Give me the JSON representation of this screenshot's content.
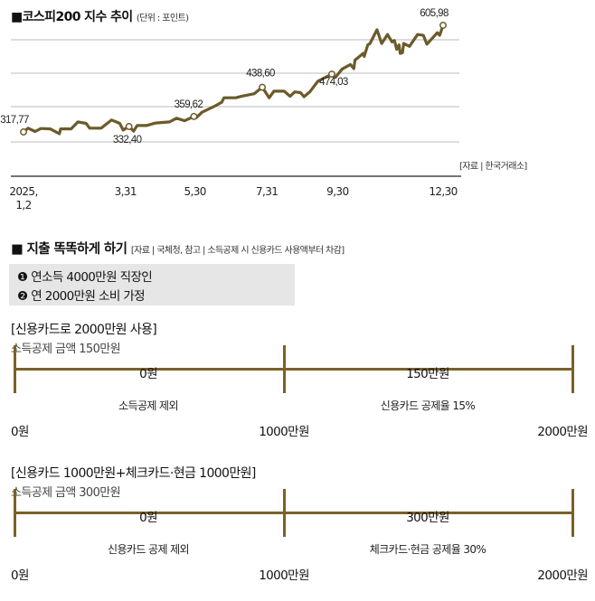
{
  "chart_data": {
    "type": "line",
    "title": "■코스피200 지수 추이",
    "unit_note": "(단위 : 포인트)",
    "source": "[자료 | 한국거래소]",
    "x_unit": "day of year 2025",
    "x_tick_labels": [
      {
        "day": 2,
        "label": "2025,\n1,2"
      },
      {
        "day": 90,
        "label": "3,31"
      },
      {
        "day": 150,
        "label": "5,30"
      },
      {
        "day": 212,
        "label": "7,31"
      },
      {
        "day": 273,
        "label": "9,30"
      },
      {
        "day": 364,
        "label": "12,30"
      }
    ],
    "ylim": [
      280,
      620
    ],
    "grid": true,
    "line_color": "#6b5a2a",
    "series": [
      {
        "name": "코스피200",
        "x": [
          2,
          6,
          12,
          17,
          25,
          33,
          34,
          43,
          49,
          56,
          59,
          69,
          78,
          85,
          88,
          93,
          97,
          100,
          108,
          116,
          128,
          134,
          141,
          149,
          151,
          156,
          166,
          173,
          175,
          185,
          190,
          201,
          208,
          214,
          218,
          227,
          232,
          236,
          241,
          244,
          249,
          256,
          268,
          271,
          277,
          284,
          287,
          288,
          295,
          296,
          299,
          301,
          307,
          311,
          316,
          320,
          322,
          324,
          326,
          327,
          329,
          330,
          335,
          342,
          347,
          350,
          359,
          361,
          364
        ],
        "values": [
          317.77,
          328,
          319,
          327,
          326,
          313,
          326,
          326,
          345,
          341,
          328,
          328,
          350,
          341,
          323,
          332.4,
          320,
          335,
          335,
          342,
          345,
          355,
          348,
          359.62,
          356,
          371,
          386,
          398,
          410,
          410,
          414,
          421,
          438.6,
          410,
          428,
          428,
          414,
          426,
          424,
          413,
          426,
          455,
          474.03,
          465,
          488,
          500,
          489,
          512,
          530,
          522,
          553,
          557,
          594,
          557,
          581,
          561,
          565,
          541,
          553,
          530,
          532,
          557,
          549,
          581,
          579,
          555,
          586,
          579,
          605.98
        ]
      }
    ],
    "annotations": [
      {
        "day": 2,
        "value": 317.77,
        "label": "317,77"
      },
      {
        "day": 93,
        "value": 332.4,
        "label": "332,40"
      },
      {
        "day": 149,
        "value": 359.62,
        "label": "359,62"
      },
      {
        "day": 208,
        "value": 438.6,
        "label": "438,60"
      },
      {
        "day": 268,
        "value": 474.03,
        "label": "474,03"
      },
      {
        "day": 364,
        "value": 605.98,
        "label": "605,98"
      }
    ]
  },
  "spending": {
    "title": "■ 지출 똑똑하게 하기",
    "note": "[자료 | 국체청, 참고 | 소득공제 시 신용카드 사용액부터 차감]",
    "assumptions": [
      "❶ 연소득 4000만원 직장인",
      "❷ 연 2000만원 소비 가정"
    ],
    "bar_color": "#7a6128",
    "scenarios": [
      {
        "heading": "[신용카드로 2000만원 사용]",
        "sub": "소득공제 금액 150만원",
        "segments": [
          {
            "top": "0원",
            "bottom": "소득공제 제외"
          },
          {
            "top": "150만원",
            "bottom": "신용카드 공제율 15%"
          }
        ],
        "scale": [
          "0원",
          "1000만원",
          "2000만원"
        ]
      },
      {
        "heading": "[신용카드 1000만원+체크카드·현금 1000만원]",
        "sub": "소득공제 금액 300만원",
        "segments": [
          {
            "top": "0원",
            "bottom": "신용카드 공제 제외"
          },
          {
            "top": "300만원",
            "bottom": "체크카드·현금 공제율 30%"
          }
        ],
        "scale": [
          "0원",
          "1000만원",
          "2000만원"
        ]
      }
    ]
  }
}
